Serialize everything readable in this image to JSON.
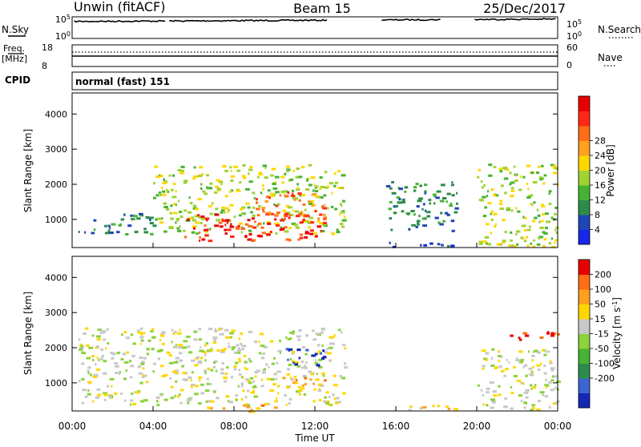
{
  "header": {
    "radar": "Unwin (fitACF)",
    "beam": "Beam 15",
    "date": "25/Dec/2017"
  },
  "summary": {
    "nsky_label": "N.Sky",
    "nsearch_label": "N.Search",
    "noise_ticks": [
      "10^5",
      "10^0"
    ],
    "freq_label_top": "Freq.",
    "freq_label_unit": "[MHz]",
    "freq_ticks": [
      "18",
      "8"
    ],
    "nave_ticks": [
      "60",
      "0"
    ],
    "nave_label": "Nave",
    "cpid_label": "CPID",
    "cpid_value": "normal (fast) 151"
  },
  "time_axis": {
    "label": "Time UT",
    "ticks": [
      "00:00",
      "04:00",
      "08:00",
      "12:00",
      "16:00",
      "20:00",
      "00:00"
    ]
  },
  "chart_data": [
    {
      "type": "heatmap",
      "parameter": "Power",
      "ylabel": "Slant Range [km]",
      "yticks": [
        1000,
        2000,
        3000,
        4000
      ],
      "ylim": [
        200,
        4600
      ],
      "xlim_hours": [
        0,
        24
      ],
      "colorbar": {
        "label": "Power [dB]",
        "ticks": [
          "4",
          "8",
          "12",
          "16",
          "20",
          "24",
          "28"
        ],
        "colors": [
          "#1428e6",
          "#1e46b4",
          "#2d8c4b",
          "#46b432",
          "#a0d232",
          "#ffd700",
          "#ffa01e",
          "#ff6e14",
          "#ff2814",
          "#e60000"
        ]
      },
      "regions": [
        {
          "t0": 0.3,
          "t1": 4.0,
          "r0": 600,
          "r1": 1200,
          "level": 2
        },
        {
          "t0": 4.0,
          "t1": 13.5,
          "r0": 600,
          "r1": 2600,
          "level": 4
        },
        {
          "t0": 5.5,
          "t1": 12.5,
          "r0": 400,
          "r1": 1200,
          "level": 8
        },
        {
          "t0": 9.0,
          "t1": 12.5,
          "r0": 1100,
          "r1": 1800,
          "level": 7
        },
        {
          "t0": 15.5,
          "t1": 19.0,
          "r0": 250,
          "r1": 400,
          "level": 1
        },
        {
          "t0": 15.5,
          "t1": 19.0,
          "r0": 700,
          "r1": 2100,
          "level": 2
        },
        {
          "t0": 20.0,
          "t1": 24.0,
          "r0": 250,
          "r1": 2600,
          "level": 4
        }
      ]
    },
    {
      "type": "heatmap",
      "parameter": "Velocity",
      "ylabel": "Slant Range [km]",
      "yticks": [
        1000,
        2000,
        3000,
        4000
      ],
      "ylim": [
        200,
        4600
      ],
      "xlim_hours": [
        0,
        24
      ],
      "colorbar": {
        "label": "Velocity [m s^-1]",
        "ticks": [
          "200",
          "100",
          "50",
          "15",
          "-15",
          "-50",
          "-100",
          "-200"
        ],
        "colors": [
          "#1428b4",
          "#3c64d2",
          "#2d8c4b",
          "#46b432",
          "#8cd23c",
          "#c8c8c8",
          "#ffd700",
          "#ffa01e",
          "#ff6e14",
          "#e60000"
        ]
      },
      "regions": [
        {
          "t0": 0.3,
          "t1": 13.5,
          "r0": 400,
          "r1": 2600,
          "level": 5
        },
        {
          "t0": 10.0,
          "t1": 12.7,
          "r0": 900,
          "r1": 1200,
          "level": 7
        },
        {
          "t0": 10.5,
          "t1": 12.5,
          "r0": 1500,
          "r1": 2000,
          "level": 0
        },
        {
          "t0": 6.5,
          "t1": 10.0,
          "r0": 200,
          "r1": 400,
          "level": 7
        },
        {
          "t0": 15.5,
          "t1": 19.0,
          "r0": 250,
          "r1": 400,
          "level": 6
        },
        {
          "t0": 20.0,
          "t1": 24.0,
          "r0": 250,
          "r1": 2000,
          "level": 5
        },
        {
          "t0": 21.5,
          "t1": 24.0,
          "r0": 2200,
          "r1": 2500,
          "level": 9
        }
      ]
    }
  ]
}
